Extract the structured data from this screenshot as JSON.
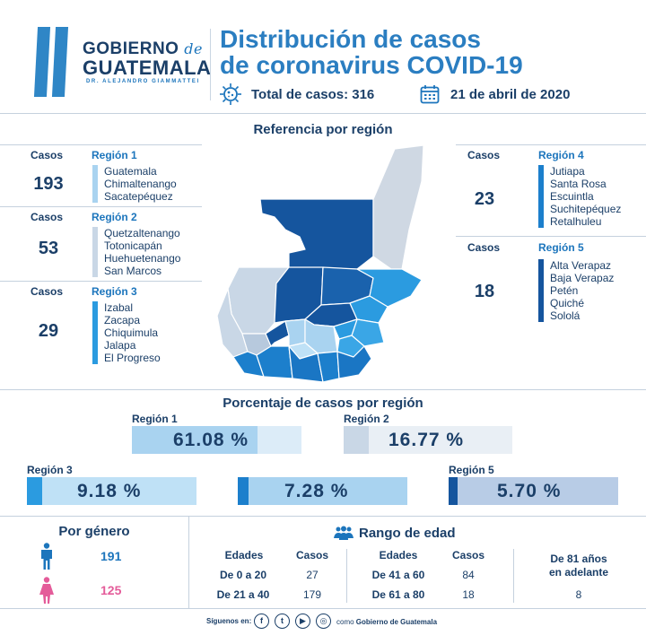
{
  "header": {
    "logo_line1": "GOBIERNO",
    "logo_de": "de",
    "logo_line2": "GUATEMALA",
    "logo_line3": "DR. ALEJANDRO GIAMMATTEI",
    "title_line1": "Distribución de casos",
    "title_line2": "de coronavirus COVID-19",
    "total_cases": "Total de casos: 316",
    "date": "21 de abril de 2020"
  },
  "map_section": {
    "title": "Referencia por región",
    "left_regions": [
      {
        "casos_label": "Casos",
        "name": "Región 1",
        "count": "193",
        "departments": [
          "Guatemala",
          "Chimaltenango",
          "Sacatepéquez"
        ],
        "color": "#a9d3f0"
      },
      {
        "casos_label": "Casos",
        "name": "Región 2",
        "count": "53",
        "departments": [
          "Quetzaltenango",
          "Totonicapán",
          "Huehuetenango",
          "San Marcos"
        ],
        "color": "#c9d7e6"
      },
      {
        "casos_label": "Casos",
        "name": "Región 3",
        "count": "29",
        "departments": [
          "Izabal",
          "Zacapa",
          "Chiquimula",
          "Jalapa",
          "El Progreso"
        ],
        "color": "#2b9be0"
      }
    ],
    "right_regions": [
      {
        "casos_label": "Casos",
        "name": "Región 4",
        "count": "23",
        "departments": [
          "Jutiapa",
          "Santa Rosa",
          "Escuintla",
          "Suchitepéquez",
          "Retalhuleu"
        ],
        "color": "#1c7fcc"
      },
      {
        "casos_label": "Casos",
        "name": "Región 5",
        "count": "18",
        "departments": [
          "Alta Verapaz",
          "Baja Verapaz",
          "Petén",
          "Quiché",
          "Sololá"
        ],
        "color": "#15559e"
      }
    ]
  },
  "percent_section": {
    "title": "Porcentaje de casos por región",
    "bars": [
      {
        "label": "Región 1",
        "value": "61.08 %",
        "fill_color": "#a9d3f0",
        "bg_color": "#dcecf8"
      },
      {
        "label": "Región 2",
        "value": "16.77 %",
        "fill_color": "#c9d7e6",
        "bg_color": "#e9eff5"
      },
      {
        "label": "Región 3",
        "value": "9.18 %",
        "fill_color": "#2b9be0",
        "bg_color": "#bfe1f6"
      },
      {
        "label": "",
        "value": "7.28 %",
        "fill_color": "#1c7fcc",
        "bg_color": "#a9d3f0"
      },
      {
        "label": "Región 5",
        "value": "5.70 %",
        "fill_color": "#15559e",
        "bg_color": "#b8cce6"
      }
    ]
  },
  "gender": {
    "title": "Por género",
    "male": "191",
    "female": "125",
    "male_color": "#1c75bc",
    "female_color": "#e45c9a"
  },
  "age": {
    "title": "Rango de edad",
    "left": {
      "col_edades": "Edades",
      "col_casos": "Casos",
      "rows": [
        {
          "range": "De 0 a 20",
          "cases": "27"
        },
        {
          "range": "De 21 a 40",
          "cases": "179"
        }
      ]
    },
    "right": {
      "col_edades": "Edades",
      "col_casos": "Casos",
      "rows": [
        {
          "range": "De 41 a 60",
          "cases": "84"
        },
        {
          "range": "De 61 a 80",
          "cases": "18"
        }
      ]
    },
    "senior_label_1": "De 81 años",
    "senior_label_2": "en adelante",
    "senior_cases": "8"
  },
  "footer": {
    "follow": "Síguenos en:",
    "handle_prefix": "como",
    "handle": "Gobierno de Guatemala",
    "icons": [
      "facebook-icon",
      "twitter-icon",
      "youtube-icon",
      "instagram-icon"
    ]
  }
}
